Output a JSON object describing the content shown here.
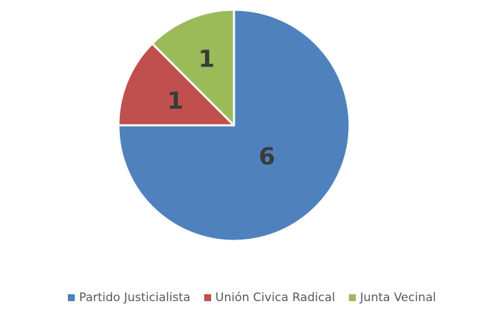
{
  "chart_data": {
    "type": "pie",
    "categories": [
      "Partido Justicialista",
      "Unión Civica Radical",
      "Junta Vecinal"
    ],
    "values": [
      6,
      1,
      1
    ],
    "colors": [
      "#4f81bd",
      "#c0504d",
      "#9bbb59"
    ],
    "data_labels": [
      "6",
      "1",
      "1"
    ],
    "legend_position": "bottom",
    "start_angle_deg": 0,
    "direction": "clockwise"
  }
}
